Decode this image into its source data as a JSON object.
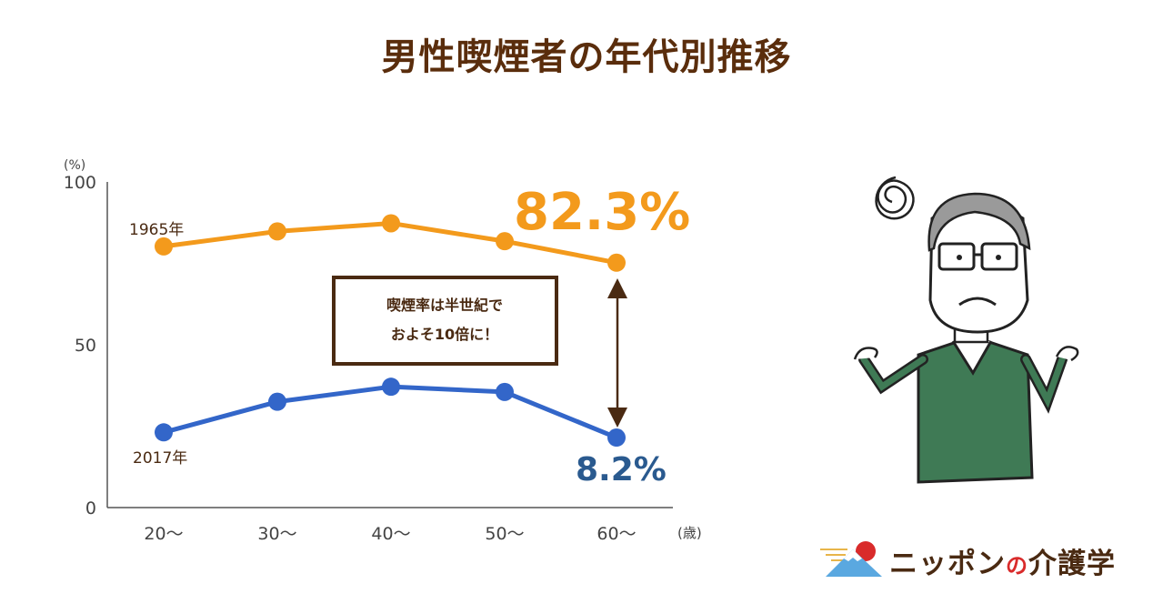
{
  "title": "男性喫煙者の年代別推移",
  "chart_data": {
    "type": "line",
    "categories": [
      "20～",
      "30～",
      "40～",
      "50～",
      "60～"
    ],
    "x_unit": "(歳)",
    "y_unit": "(%)",
    "ylim": [
      0,
      100
    ],
    "yticks": [
      0,
      50,
      100
    ],
    "grid": false,
    "series": [
      {
        "name": "1965年",
        "values": [
          80.2,
          84.8,
          87.3,
          81.8,
          75.2
        ],
        "color": "#f39a1c"
      },
      {
        "name": "2017年",
        "values": [
          23.1,
          32.5,
          37.1,
          35.5,
          21.5
        ],
        "color": "#3366c9"
      }
    ],
    "annotations": {
      "high_value": "82.3%",
      "low_value": "8.2%",
      "callout_line1": "喫煙率は半世紀で",
      "callout_line2": "およそ10倍に！"
    },
    "colors": {
      "axis": "#555555",
      "label": "#4a2a12",
      "box": "#4a2a12",
      "high": "#f39a1c",
      "low": "#2a5a8f"
    }
  },
  "logo": {
    "text_a": "ニッポン",
    "text_no": "の",
    "text_b": "介護学"
  }
}
